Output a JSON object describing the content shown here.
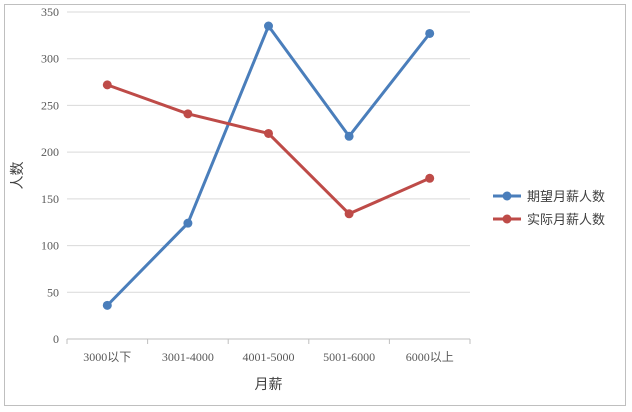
{
  "chart_data": {
    "type": "line",
    "categories": [
      "3000以下",
      "3001-4000",
      "4001-5000",
      "5001-6000",
      "6000以上"
    ],
    "series": [
      {
        "name": "期望月薪人数",
        "values": [
          36,
          124,
          335,
          217,
          327
        ],
        "color": "#4a7ebb"
      },
      {
        "name": "实际月薪人数",
        "values": [
          272,
          241,
          220,
          134,
          172
        ],
        "color": "#be4b48"
      }
    ],
    "xlabel": "月薪",
    "ylabel": "人数",
    "ylim": [
      0,
      350
    ],
    "yticks": [
      0,
      50,
      100,
      150,
      200,
      250,
      300,
      350
    ],
    "grid": true,
    "legend_position": "right"
  }
}
